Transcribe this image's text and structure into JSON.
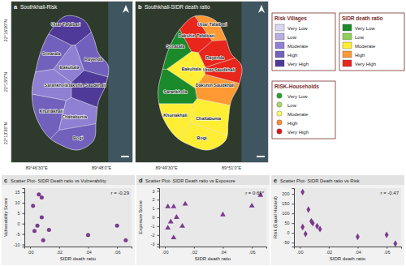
{
  "maps": [
    {
      "label": "a",
      "title": "Southkhali-Risk",
      "legend": 0,
      "villages": [
        {
          "name": "Uttar Tafalbari",
          "class": "Very High"
        },
        {
          "name": "Sonatala",
          "class": "High"
        },
        {
          "name": "Bakultala",
          "class": "Moderate"
        },
        {
          "name": "Rayenda",
          "class": "High"
        },
        {
          "name": "Dakshin Saudkhali",
          "class": "Very High"
        },
        {
          "name": "Sarankhola",
          "class": "Moderate"
        },
        {
          "name": "Khuriakhali",
          "class": "High"
        },
        {
          "name": "Chaltabunia",
          "class": "Moderate"
        },
        {
          "name": "Bogi",
          "class": "High"
        }
      ]
    },
    {
      "label": "b",
      "title": "Southkhali-SIDR death ratio",
      "legend": 1,
      "villages": [
        {
          "name": "Sonatala",
          "class": "Very Low"
        },
        {
          "name": "Dakshin Tafalbari",
          "class": "Very High"
        },
        {
          "name": "Uttar Tafalbari",
          "class": "High"
        },
        {
          "name": "Rayenda",
          "class": "Very High"
        },
        {
          "name": "Bakultala",
          "class": "Moderate"
        },
        {
          "name": "Uttar Saudkhali",
          "class": "Very High"
        },
        {
          "name": "Dakshin Saudkhali",
          "class": "High"
        },
        {
          "name": "Sarankhola",
          "class": "Very Low"
        },
        {
          "name": "Khuriakhali",
          "class": "Moderate"
        },
        {
          "name": "Chaltabunia",
          "class": "Moderate"
        },
        {
          "name": "Bogi",
          "class": "Moderate"
        }
      ]
    }
  ],
  "latitude_labels": [
    "22°16'30\"N",
    "22°15'0\"N",
    "22°13'30\"N"
  ],
  "longitude_labels": [
    "89°46'30\"E",
    "89°48'0\"E",
    "89°49'30\"E",
    "89°51'0\"E"
  ],
  "legends": [
    {
      "title": "Risk Villages",
      "marker": "square",
      "items": [
        {
          "label": "Very Low",
          "color": "#dcd6f0"
        },
        {
          "label": "Low",
          "color": "#b8addf"
        },
        {
          "label": "Moderate",
          "color": "#8f80d4"
        },
        {
          "label": "High",
          "color": "#7161bd"
        },
        {
          "label": "Very High",
          "color": "#4f3a9a"
        }
      ]
    },
    {
      "title": "SIDR death ratio",
      "marker": "square",
      "items": [
        {
          "label": "Very Low",
          "color": "#1a8a2a"
        },
        {
          "label": "Low",
          "color": "#8cd05a"
        },
        {
          "label": "Moderate",
          "color": "#ffee33"
        },
        {
          "label": "High",
          "color": "#ff9933"
        },
        {
          "label": "Very High",
          "color": "#e8261c"
        }
      ]
    },
    {
      "title": "RISK-Households",
      "marker": "circle",
      "items": [
        {
          "label": "Very Low",
          "color": "#2ca02c"
        },
        {
          "label": "Low",
          "color": "#a6d96a"
        },
        {
          "label": "Moderate",
          "color": "#ffff66"
        },
        {
          "label": "High",
          "color": "#fd8d3c"
        },
        {
          "label": "Very High",
          "color": "#d7191c"
        }
      ]
    }
  ],
  "chart_data": [
    {
      "type": "scatter",
      "label": "c",
      "title": "Scatter Plot- SIDR Death ratio vs Vulnerability",
      "x_label": "SIDR death ratio",
      "y_label": "Vulnerability Score",
      "annotation": "r = -0.29",
      "marker": "circle",
      "color": "#7a3b8c",
      "x": [
        0.002,
        0.003,
        0.005,
        0.006,
        0.008,
        0.008,
        0.009,
        0.013,
        0.04,
        0.06,
        0.066
      ],
      "values": [
        8.5,
        -3.5,
        -1,
        14,
        12.5,
        3,
        -8,
        -3,
        -5.5,
        -1,
        -8
      ],
      "xlim": [
        -0.004,
        0.07
      ],
      "ylim": [
        -11,
        17
      ],
      "xticks": [
        {
          "value": 0,
          "label": ".00"
        },
        {
          "value": 0.02,
          "label": ".02"
        },
        {
          "value": 0.04,
          "label": ".04"
        },
        {
          "value": 0.06,
          "label": ".06"
        }
      ],
      "yticks": [
        -10,
        -5,
        0,
        5,
        10,
        15
      ]
    },
    {
      "type": "scatter",
      "label": "d",
      "title": "Scatter Plot- SIDR Death ratio vs Exposure",
      "x_label": "SIDR death ratio",
      "y_label": "Exposure Score",
      "annotation": "r = 0.69*",
      "marker": "triangle",
      "color": "#7a3b8c",
      "x": [
        0.002,
        0.002,
        0.004,
        0.006,
        0.006,
        0.008,
        0.012,
        0.014,
        0.04,
        0.06,
        0.066
      ],
      "values": [
        -1.2,
        1.2,
        -0.5,
        -2.3,
        1.2,
        0,
        -1,
        1.5,
        0.3,
        1.3,
        2.5
      ],
      "xlim": [
        -0.004,
        0.07
      ],
      "ylim": [
        -3.3,
        3.3
      ],
      "xticks": [
        {
          "value": 0,
          "label": ".00"
        },
        {
          "value": 0.02,
          "label": ".02"
        },
        {
          "value": 0.04,
          "label": ".04"
        },
        {
          "value": 0.06,
          "label": ".06"
        }
      ],
      "yticks": [
        -3,
        -2,
        -1,
        0,
        1,
        2,
        3
      ]
    },
    {
      "type": "scatter",
      "label": "e",
      "title": "Scatter Plot- SIDR Death ratio vs Risk",
      "x_label": "SIDR death ratio",
      "y_label": "Risk (Equal Hazard)",
      "annotation": "r = -0.47",
      "marker": "diamond",
      "color": "#7a3b8c",
      "x": [
        0.002,
        0.002,
        0.004,
        0.006,
        0.008,
        0.009,
        0.012,
        0.014,
        0.04,
        0.06,
        0.066
      ],
      "values": [
        210,
        30,
        -5,
        120,
        60,
        50,
        35,
        20,
        -20,
        -10,
        -55
      ],
      "xlim": [
        -0.004,
        0.07
      ],
      "ylim": [
        -70,
        230
      ],
      "xticks": [
        {
          "value": 0,
          "label": ".00"
        },
        {
          "value": 0.02,
          "label": ".02"
        },
        {
          "value": 0.04,
          "label": ".04"
        },
        {
          "value": 0.06,
          "label": ".06"
        }
      ],
      "yticks": [
        -50,
        0,
        50,
        100,
        150,
        200
      ]
    }
  ]
}
